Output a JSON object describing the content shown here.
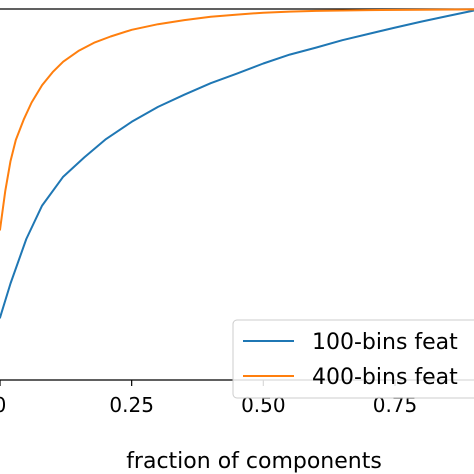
{
  "chart_data": {
    "type": "line",
    "title": "",
    "xlabel": "fraction of components",
    "ylabel": "",
    "xlim": [
      0.0,
      0.9
    ],
    "ylim": [
      0.0,
      1.0
    ],
    "grid": false,
    "legend_position": "bottom-right",
    "x_ticks": [
      0.0,
      0.25,
      0.5,
      0.75
    ],
    "x_tick_labels": [
      "0",
      "0.25",
      "0.50",
      "0.75"
    ],
    "series": [
      {
        "name": "100-bins feat",
        "color": "#1f77b4",
        "x": [
          0.0,
          0.02,
          0.05,
          0.08,
          0.12,
          0.16,
          0.2,
          0.25,
          0.3,
          0.35,
          0.4,
          0.45,
          0.5,
          0.55,
          0.6,
          0.65,
          0.7,
          0.75,
          0.8,
          0.85,
          0.9
        ],
        "y": [
          0.168,
          0.26,
          0.38,
          0.47,
          0.548,
          0.6,
          0.648,
          0.696,
          0.736,
          0.769,
          0.8,
          0.826,
          0.853,
          0.877,
          0.896,
          0.916,
          0.933,
          0.95,
          0.966,
          0.981,
          0.996
        ]
      },
      {
        "name": "400-bins feat",
        "color": "#ff7f0e",
        "x": [
          0.0,
          0.01,
          0.02,
          0.03,
          0.045,
          0.06,
          0.08,
          0.1,
          0.12,
          0.15,
          0.18,
          0.21,
          0.25,
          0.3,
          0.35,
          0.4,
          0.45,
          0.5,
          0.55,
          0.6,
          0.7,
          0.8,
          0.9
        ],
        "y": [
          0.405,
          0.51,
          0.59,
          0.647,
          0.702,
          0.748,
          0.795,
          0.83,
          0.858,
          0.888,
          0.91,
          0.926,
          0.944,
          0.959,
          0.97,
          0.979,
          0.985,
          0.99,
          0.993,
          0.995,
          0.997,
          0.998,
          0.999
        ]
      }
    ]
  }
}
